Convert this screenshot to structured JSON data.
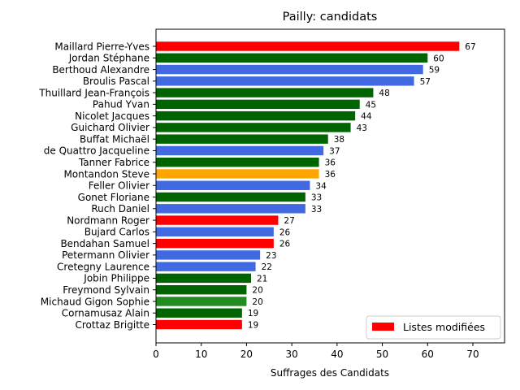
{
  "chart_data": {
    "type": "bar",
    "orientation": "horizontal",
    "title": "Pailly: candidats",
    "xlabel": "Suffrages des Candidats",
    "ylabel": "",
    "xlim": [
      0,
      77
    ],
    "xticks": [
      0,
      10,
      20,
      30,
      40,
      50,
      60,
      70
    ],
    "grid": false,
    "legend": {
      "position": "bottom-right",
      "entries": [
        {
          "label": "Listes modifiées",
          "color": "#ff0000"
        }
      ]
    },
    "categories": [
      "Maillard Pierre-Yves",
      "Jordan Stéphane",
      "Berthoud Alexandre",
      "Broulis Pascal",
      "Thuillard Jean-François",
      "Pahud Yvan",
      "Nicolet Jacques",
      "Guichard Olivier",
      "Buffat Michaël",
      "de Quattro Jacqueline",
      "Tanner Fabrice",
      "Montandon Steve",
      "Feller Olivier",
      "Gonet Floriane",
      "Ruch Daniel",
      "Nordmann Roger",
      "Bujard Carlos",
      "Bendahan Samuel",
      "Petermann Olivier",
      "Cretegny Laurence",
      "Jobin Philippe",
      "Freymond Sylvain",
      "Michaud Gigon Sophie",
      "Cornamusaz Alain",
      "Crottaz Brigitte"
    ],
    "values": [
      67,
      60,
      59,
      57,
      48,
      45,
      44,
      43,
      38,
      37,
      36,
      36,
      34,
      33,
      33,
      27,
      26,
      26,
      23,
      22,
      21,
      20,
      20,
      19,
      19
    ],
    "colors": [
      "#ff0000",
      "#006400",
      "#4169e1",
      "#4169e1",
      "#006400",
      "#006400",
      "#006400",
      "#006400",
      "#006400",
      "#4169e1",
      "#006400",
      "#ffa500",
      "#4169e1",
      "#006400",
      "#4169e1",
      "#ff0000",
      "#4169e1",
      "#ff0000",
      "#4169e1",
      "#4169e1",
      "#006400",
      "#006400",
      "#228b22",
      "#006400",
      "#ff0000"
    ]
  }
}
